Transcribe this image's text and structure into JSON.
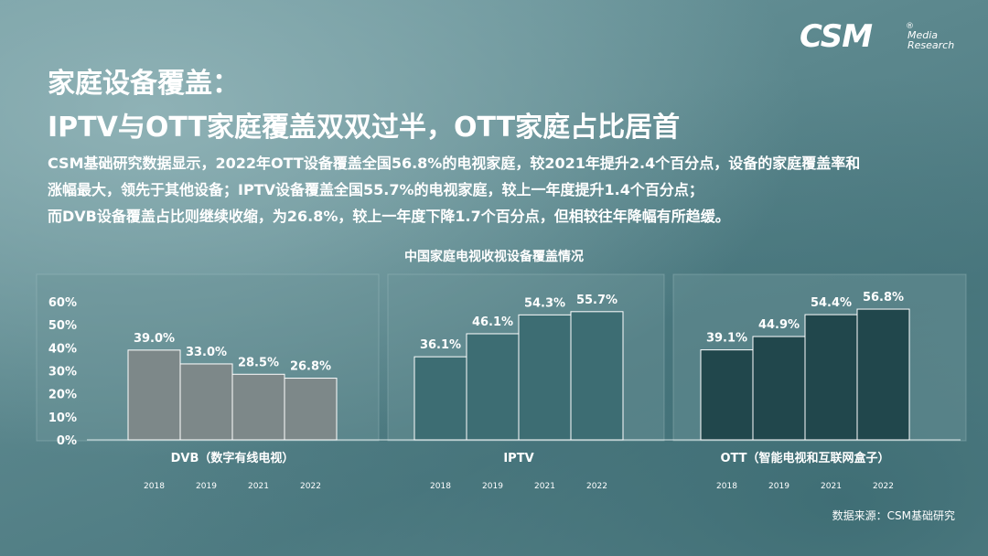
{
  "logo": {
    "main": "CSM",
    "registered": "®",
    "line1": "Media",
    "line2": "Research"
  },
  "title_line1": "家庭设备覆盖：",
  "title_line2": "IPTV与OTT家庭覆盖双双过半，OTT家庭占比居首",
  "description": [
    "CSM基础研究数据显示，2022年OTT设备覆盖全国56.8%的电视家庭，较2021年提升2.4个百分点，设备的家庭覆盖率和",
    "涨幅最大，领先于其他设备；IPTV设备覆盖全国55.7%的电视家庭，较上一年度提升1.4个百分点；",
    "而DVB设备覆盖占比则继续收缩，为26.8%，较上一年度下降1.7个百分点，但相较往年降幅有所趋缓。"
  ],
  "source": "数据来源：CSM基础研究",
  "colors": {
    "dvb": "#7d8889",
    "iptv": "#3d6d73",
    "ott": "#21474c",
    "panel": "#6c9599"
  },
  "chart_data": {
    "type": "bar",
    "title": "中国家庭电视收视设备覆盖情况",
    "y_ticks": [
      "60%",
      "50%",
      "40%",
      "30%",
      "20%",
      "10%",
      "0%"
    ],
    "ylim": [
      0,
      60
    ],
    "grid": false,
    "groups": [
      {
        "label": "DVB（数字有线电视）",
        "categories": [
          "2018",
          "2019",
          "2021",
          "2022"
        ],
        "values": [
          39.0,
          33.0,
          28.5,
          26.8
        ],
        "value_labels": [
          "39.0%",
          "33.0%",
          "28.5%",
          "26.8%"
        ],
        "color": "#7d8889"
      },
      {
        "label": "IPTV",
        "categories": [
          "2018",
          "2019",
          "2021",
          "2022"
        ],
        "values": [
          36.1,
          46.1,
          54.3,
          55.7
        ],
        "value_labels": [
          "36.1%",
          "46.1%",
          "54.3%",
          "55.7%"
        ],
        "color": "#3d6d73"
      },
      {
        "label": "OTT（智能电视和互联网盒子）",
        "categories": [
          "2018",
          "2019",
          "2021",
          "2022"
        ],
        "values": [
          39.1,
          44.9,
          54.4,
          56.8
        ],
        "value_labels": [
          "39.1%",
          "44.9%",
          "54.4%",
          "56.8%"
        ],
        "color": "#21474c"
      }
    ]
  }
}
